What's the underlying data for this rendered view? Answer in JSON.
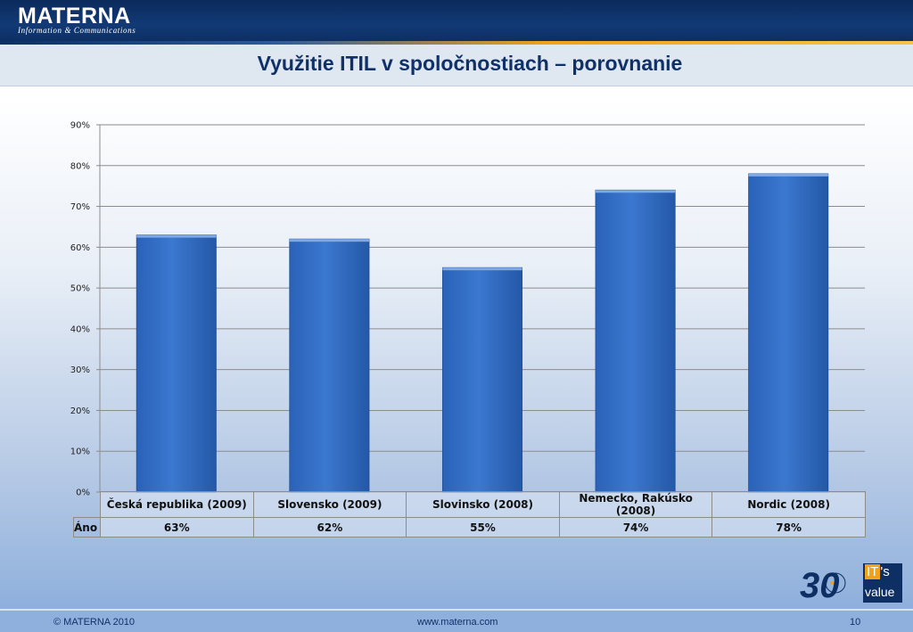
{
  "header": {
    "logo_name": "MATERNA",
    "logo_tagline": "Information & Communications"
  },
  "slide": {
    "title": "Využitie ITIL v spoločnostiach – porovnanie"
  },
  "colors": {
    "bar": "#3b78cf",
    "header": "#0d2f63",
    "accent": "#f0a21a",
    "title": "#10306a"
  },
  "chart_data": {
    "type": "bar",
    "categories": [
      "Česká republika (2009)",
      "Slovensko (2009)",
      "Slovinsko (2008)",
      "Nemecko, Rakúsko (2008)",
      "Nordic  (2008)"
    ],
    "series": [
      {
        "name": "Áno",
        "values": [
          0.63,
          0.62,
          0.55,
          0.74,
          0.78
        ],
        "labels": [
          "63%",
          "62%",
          "55%",
          "74%",
          "78%"
        ]
      }
    ],
    "yticks": [
      "0%",
      "10%",
      "20%",
      "30%",
      "40%",
      "50%",
      "60%",
      "70%",
      "80%",
      "90%"
    ],
    "ylim": [
      0,
      0.9
    ],
    "grid": true,
    "legend": "data-table-below"
  },
  "footer": {
    "copyright": "© MATERNA 2010",
    "url": "www.materna.com",
    "page": "10"
  },
  "badges": {
    "anniversary": "30",
    "its_it": "IT",
    "its_s": "'s",
    "value": "value"
  }
}
